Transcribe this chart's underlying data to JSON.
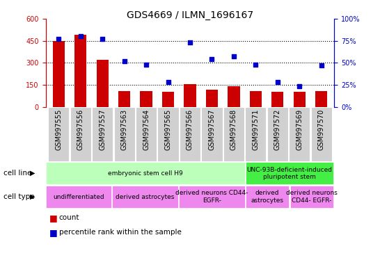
{
  "title": "GDS4669 / ILMN_1696167",
  "samples": [
    "GSM997555",
    "GSM997556",
    "GSM997557",
    "GSM997563",
    "GSM997564",
    "GSM997565",
    "GSM997566",
    "GSM997567",
    "GSM997568",
    "GSM997571",
    "GSM997572",
    "GSM997569",
    "GSM997570"
  ],
  "counts": [
    450,
    490,
    320,
    105,
    105,
    100,
    155,
    115,
    140,
    105,
    100,
    100,
    105
  ],
  "percentiles": [
    77,
    80,
    77,
    52,
    48,
    28,
    73,
    54,
    57,
    48,
    28,
    23,
    47
  ],
  "bar_color": "#cc0000",
  "dot_color": "#0000cc",
  "ylim_left": [
    0,
    600
  ],
  "ylim_right": [
    0,
    100
  ],
  "yticks_left": [
    0,
    150,
    300,
    450,
    600
  ],
  "yticks_right": [
    0,
    25,
    50,
    75,
    100
  ],
  "cell_line_groups": [
    {
      "label": "embryonic stem cell H9",
      "start": 0,
      "end": 8,
      "color": "#bbffbb"
    },
    {
      "label": "UNC-93B-deficient-induced\npluripotent stem",
      "start": 9,
      "end": 12,
      "color": "#44ee44"
    }
  ],
  "cell_type_groups": [
    {
      "label": "undifferentiated",
      "start": 0,
      "end": 2,
      "color": "#ee88ee"
    },
    {
      "label": "derived astrocytes",
      "start": 3,
      "end": 5,
      "color": "#ee88ee"
    },
    {
      "label": "derived neurons CD44-\nEGFR-",
      "start": 6,
      "end": 8,
      "color": "#ee88ee"
    },
    {
      "label": "derived\nastrocytes",
      "start": 9,
      "end": 10,
      "color": "#ee88ee"
    },
    {
      "label": "derived neurons\nCD44- EGFR-",
      "start": 11,
      "end": 12,
      "color": "#ee88ee"
    }
  ],
  "bar_width": 0.55,
  "title_fontsize": 10,
  "tick_fontsize": 7,
  "legend_fontsize": 7.5,
  "row_label_fontsize": 7.5,
  "annotation_fontsize": 6.5
}
